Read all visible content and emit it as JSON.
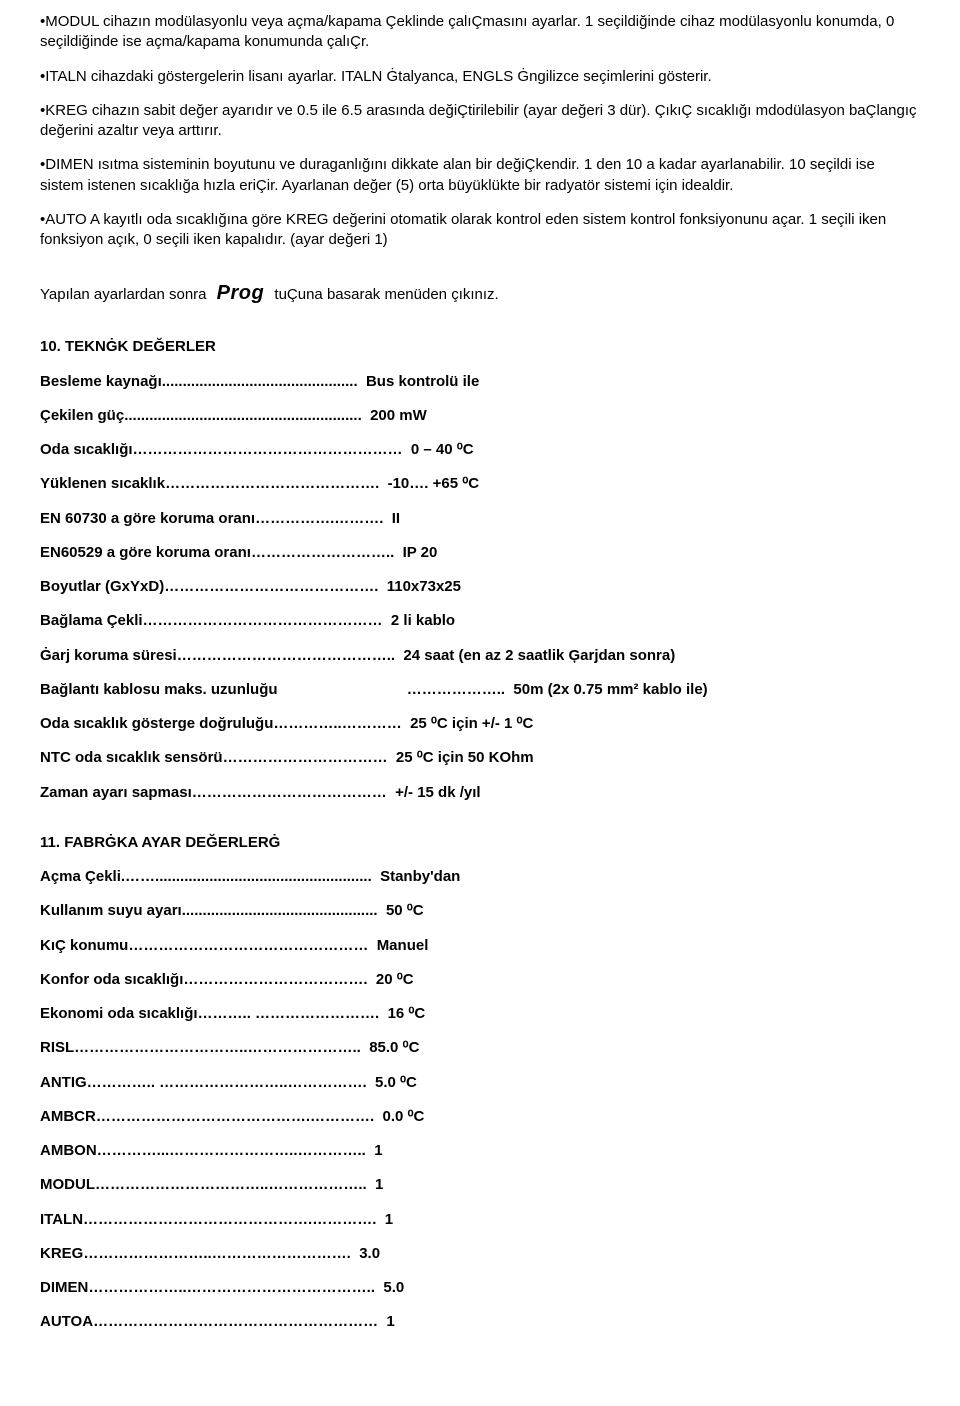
{
  "paragraphs": {
    "modul": "•MODUL cihazın modülasyonlu veya açma/kapama Çeklinde çalıÇmasını ayarlar. 1 seçildiğinde cihaz modülasyonlu konumda, 0 seçildiğinde ise açma/kapama konumunda çalıÇr.",
    "italn": "•ITALN cihazdaki göstergelerin lisanı ayarlar. ITALN Ġtalyanca, ENGLS Ġngilizce seçimlerini gösterir.",
    "kreg": "•KREG cihazın sabit değer ayarıdır ve 0.5 ile 6.5 arasında değiÇtirilebilir (ayar değeri 3 dür). ÇıkıÇ sıcaklığı mdodülasyon baÇlangıç değerini azaltır veya arttırır.",
    "dimen": "•DIMEN ısıtma sisteminin boyutunu ve duraganlığını dikkate alan bir değiÇkendir. 1 den 10 a kadar ayarlanabilir. 10 seçildi ise sistem istenen sıcaklığa hızla eriÇir. Ayarlanan değer (5) orta büyüklükte bir radyatör sistemi için idealdir.",
    "autoa": "•AUTO A kayıtlı oda sıcaklığına göre KREG değerini otomatik olarak kontrol eden sistem kontrol fonksiyonunu açar. 1 seçili iken fonksiyon açık, 0 seçili iken kapalıdır. (ayar değeri 1)",
    "after_settings_pre": "Yapılan ayarlardan sonra",
    "prog": "Prog",
    "after_settings_post": "tuÇuna basarak menüden çıkınız."
  },
  "section10_title": "10. TEKNĠK DEĞERLER",
  "specs10": [
    {
      "label": "Besleme kaynağı",
      "dots": "...............................................",
      "value": "Bus kontrolü ile"
    },
    {
      "label": "Çekilen güç",
      "dots": ".........................................................",
      "value": "200 mW"
    },
    {
      "label": "Oda sıcaklığı",
      "dots": "………………………………………………",
      "value": "0 – 40 ⁰C"
    },
    {
      "label": "Yüklenen sıcaklık",
      "dots": "…………………………………….",
      "value": "-10…. +65 ⁰C"
    },
    {
      "label": "EN 60730 a göre koruma oranı",
      "dots": "…………….……….",
      "value": "II"
    },
    {
      "label": "EN60529 a göre koruma oranı",
      "dots": "………………………..",
      "value": "IP 20"
    },
    {
      "label": "Boyutlar (GxYxD)",
      "dots": "…………………………………….",
      "value": "110x73x25"
    },
    {
      "label": "Bağlama Çekli",
      "dots": "…………………………………………",
      "value": "2 li kablo"
    },
    {
      "label": "Ġarj koruma süresi",
      "dots": "……………………………………..",
      "value": "24 saat (en az 2 saatlik Ģarjdan sonra)"
    },
    {
      "label": "Bağlantı kablosu maks. uzunluğu",
      "dots": "                               ………………..",
      "value": "50m (2x 0.75 mm² kablo ile)"
    },
    {
      "label": "Oda sıcaklık gösterge doğruluğu",
      "dots": "…………..…………",
      "value": "25 ⁰C için +/- 1 ⁰C"
    },
    {
      "label": "NTC oda sıcaklık sensörü",
      "dots": "……………………………",
      "value": "25 ⁰C için 50 KOhm"
    },
    {
      "label": "Zaman ayarı sapması",
      "dots": "…………………………………",
      "value": "+/- 15 dk /yıl"
    }
  ],
  "section11_title": "11. FABRĠKA AYAR DEĞERLERĠ",
  "specs11": [
    {
      "label": "Açma Çekli",
      "dots": ".……....................................................",
      "value": "Stanby'dan"
    },
    {
      "label": "Kullanım suyu ayarı",
      "dots": "...............................................",
      "value": "50 ⁰C"
    },
    {
      "label": "KıÇ konumu",
      "dots": "…………………………………………",
      "value": "Manuel"
    },
    {
      "label": "Konfor oda sıcaklığı",
      "dots": "……………………………….",
      "value": "20 ⁰C"
    },
    {
      "label": "Ekonomi oda sıcaklığı",
      "dots": "……….. …………………….",
      "value": "16 ⁰C"
    },
    {
      "label": "RISL",
      "dots": "……………………………..…………………..",
      "value": "85.0 ⁰C"
    },
    {
      "label": "ANTIG",
      "dots": "………….. ……………………..…………….",
      "value": "5.0 ⁰C"
    },
    {
      "label": "AMBCR",
      "dots": "…………………………………….………….",
      "value": "0.0 ⁰C"
    },
    {
      "label": "AMBON",
      "dots": "…………...……………………..…………..",
      "value": "1"
    },
    {
      "label": "MODUL",
      "dots": "……………………………..………………..",
      "value": "1"
    },
    {
      "label": "ITALN",
      "dots": "……………………………………….………….",
      "value": "1"
    },
    {
      "label": "KREG",
      "dots": "……………………..……………………….",
      "value": "3.0"
    },
    {
      "label": "DIMEN",
      "dots": "………………..………………………………..",
      "value": "5.0"
    },
    {
      "label": "AUTOA",
      "dots": "…………………………………………………",
      "value": "1"
    }
  ]
}
